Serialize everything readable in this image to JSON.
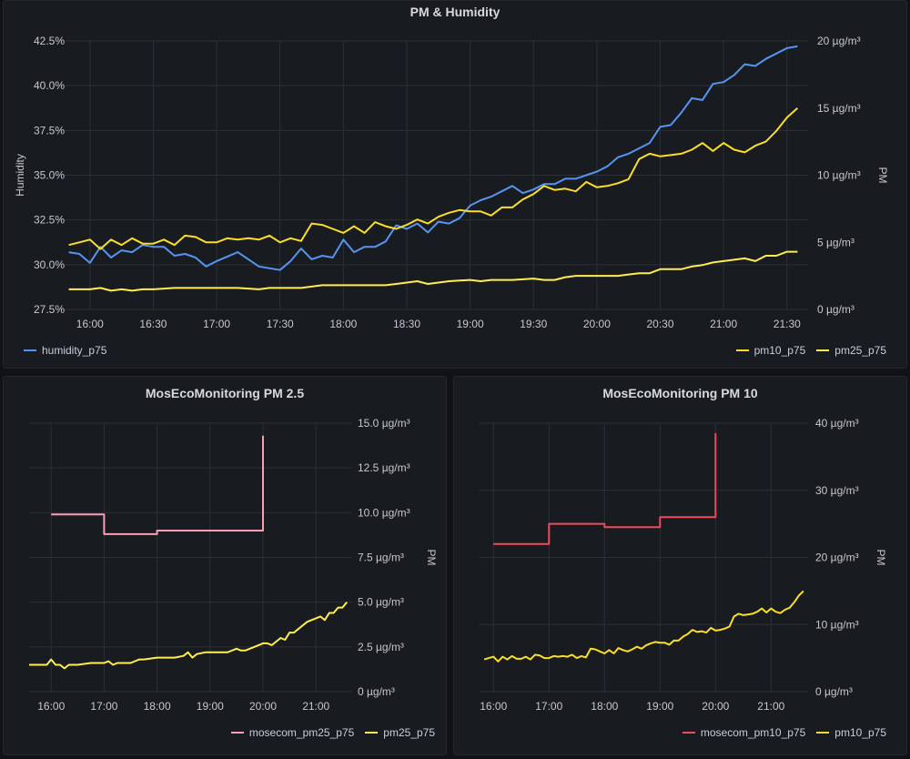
{
  "chart_data": [
    {
      "type": "line",
      "title": "PM & Humidity",
      "x_ticks": [
        "16:00",
        "16:30",
        "17:00",
        "17:30",
        "18:00",
        "18:30",
        "19:00",
        "19:30",
        "20:00",
        "20:30",
        "21:00",
        "21:30"
      ],
      "xlim": [
        "15:45",
        "21:40"
      ],
      "y_left": {
        "label": "Humidity",
        "ylim": [
          27.5,
          42.5
        ],
        "ticks": [
          "27.5%",
          "30.0%",
          "32.5%",
          "35.0%",
          "37.5%",
          "40.0%",
          "42.5%"
        ]
      },
      "y_right": {
        "label": "PM",
        "ylim": [
          0,
          20
        ],
        "ticks": [
          "0 µg/m³",
          "5 µg/m³",
          "10 µg/m³",
          "15 µg/m³",
          "20 µg/m³"
        ]
      },
      "grid": true,
      "legend_left": [
        "humidity_p75"
      ],
      "legend_right": [
        "pm10_p75",
        "pm25_p75"
      ],
      "series": [
        {
          "name": "humidity_p75",
          "axis": "left",
          "color": "#5794f2",
          "x": [
            "15:50",
            "15:55",
            "16:00",
            "16:05",
            "16:10",
            "16:15",
            "16:20",
            "16:25",
            "16:30",
            "16:35",
            "16:40",
            "16:45",
            "16:50",
            "16:55",
            "17:00",
            "17:10",
            "17:20",
            "17:30",
            "17:35",
            "17:40",
            "17:45",
            "17:50",
            "17:55",
            "18:00",
            "18:05",
            "18:10",
            "18:15",
            "18:20",
            "18:25",
            "18:30",
            "18:35",
            "18:40",
            "18:45",
            "18:50",
            "18:55",
            "19:00",
            "19:05",
            "19:10",
            "19:15",
            "19:20",
            "19:25",
            "19:30",
            "19:35",
            "19:40",
            "19:45",
            "19:50",
            "19:55",
            "20:00",
            "20:05",
            "20:10",
            "20:15",
            "20:20",
            "20:25",
            "20:30",
            "20:35",
            "20:40",
            "20:45",
            "20:50",
            "20:55",
            "21:00",
            "21:05",
            "21:10",
            "21:15",
            "21:20",
            "21:25",
            "21:30",
            "21:35"
          ],
          "values": [
            30.7,
            30.6,
            30.1,
            31.0,
            30.4,
            30.8,
            30.7,
            31.1,
            31.0,
            31.0,
            30.5,
            30.6,
            30.4,
            29.9,
            30.2,
            30.7,
            29.9,
            29.7,
            30.2,
            30.9,
            30.3,
            30.5,
            30.4,
            31.4,
            30.7,
            31.0,
            31.0,
            31.3,
            32.2,
            32.0,
            32.3,
            31.8,
            32.4,
            32.3,
            32.6,
            33.3,
            33.6,
            33.8,
            34.1,
            34.4,
            34.0,
            34.2,
            34.5,
            34.5,
            34.8,
            34.8,
            35.0,
            35.2,
            35.5,
            36.0,
            36.2,
            36.5,
            36.8,
            37.7,
            37.8,
            38.5,
            39.3,
            39.2,
            40.1,
            40.2,
            40.6,
            41.2,
            41.1,
            41.5,
            41.8,
            42.1,
            42.2
          ]
        },
        {
          "name": "pm10_p75",
          "axis": "right",
          "color": "#fade2a",
          "x": [
            "15:50",
            "15:55",
            "16:00",
            "16:05",
            "16:10",
            "16:15",
            "16:20",
            "16:25",
            "16:30",
            "16:35",
            "16:40",
            "16:45",
            "16:50",
            "16:55",
            "17:00",
            "17:05",
            "17:10",
            "17:15",
            "17:20",
            "17:25",
            "17:30",
            "17:35",
            "17:40",
            "17:45",
            "17:50",
            "17:55",
            "18:00",
            "18:05",
            "18:10",
            "18:15",
            "18:20",
            "18:25",
            "18:30",
            "18:35",
            "18:40",
            "18:45",
            "18:50",
            "18:55",
            "19:00",
            "19:05",
            "19:10",
            "19:15",
            "19:20",
            "19:25",
            "19:30",
            "19:35",
            "19:40",
            "19:45",
            "19:50",
            "19:55",
            "20:00",
            "20:05",
            "20:10",
            "20:15",
            "20:20",
            "20:25",
            "20:30",
            "20:35",
            "20:40",
            "20:45",
            "20:50",
            "20:55",
            "21:00",
            "21:05",
            "21:10",
            "21:15",
            "21:20",
            "21:25",
            "21:30",
            "21:35"
          ],
          "values": [
            4.8,
            5.0,
            5.2,
            4.5,
            5.2,
            4.8,
            5.3,
            4.9,
            4.9,
            5.2,
            4.8,
            5.5,
            5.4,
            5.0,
            5.0,
            5.3,
            5.2,
            5.3,
            5.2,
            5.5,
            5.0,
            5.3,
            5.1,
            6.4,
            6.3,
            6.0,
            5.7,
            6.2,
            5.7,
            6.5,
            6.2,
            6.0,
            6.3,
            6.7,
            6.4,
            6.9,
            7.2,
            7.4,
            7.3,
            7.3,
            7.0,
            7.6,
            7.6,
            8.2,
            8.6,
            9.2,
            8.9,
            9.0,
            8.8,
            9.5,
            9.1,
            9.2,
            9.4,
            9.7,
            11.2,
            11.6,
            11.4,
            11.5,
            11.6,
            11.9,
            12.4,
            11.8,
            12.4,
            11.9,
            11.7,
            12.2,
            12.5,
            13.3,
            14.3,
            15.0
          ]
        },
        {
          "name": "pm25_p75",
          "axis": "right",
          "color": "#ffee52",
          "x": [
            "15:50",
            "16:00",
            "16:05",
            "16:10",
            "16:15",
            "16:20",
            "16:25",
            "16:30",
            "16:40",
            "16:50",
            "17:00",
            "17:05",
            "17:10",
            "17:20",
            "17:25",
            "17:30",
            "17:40",
            "17:50",
            "17:55",
            "18:00",
            "18:10",
            "18:20",
            "18:25",
            "18:30",
            "18:35",
            "18:40",
            "18:45",
            "18:50",
            "19:00",
            "19:05",
            "19:10",
            "19:20",
            "19:30",
            "19:35",
            "19:40",
            "19:45",
            "19:50",
            "19:55",
            "20:00",
            "20:05",
            "20:10",
            "20:15",
            "20:20",
            "20:25",
            "20:30",
            "20:35",
            "20:40",
            "20:45",
            "20:50",
            "20:55",
            "21:00",
            "21:05",
            "21:10",
            "21:15",
            "21:20",
            "21:25",
            "21:30",
            "21:35"
          ],
          "values": [
            1.5,
            1.5,
            1.6,
            1.4,
            1.5,
            1.4,
            1.5,
            1.5,
            1.6,
            1.6,
            1.6,
            1.6,
            1.6,
            1.5,
            1.6,
            1.6,
            1.6,
            1.8,
            1.8,
            1.8,
            1.8,
            1.8,
            1.9,
            2.0,
            2.1,
            1.9,
            2.0,
            2.1,
            2.2,
            2.1,
            2.2,
            2.2,
            2.3,
            2.2,
            2.2,
            2.4,
            2.5,
            2.5,
            2.5,
            2.5,
            2.5,
            2.6,
            2.7,
            2.7,
            3.0,
            3.0,
            3.0,
            3.2,
            3.3,
            3.5,
            3.6,
            3.7,
            3.8,
            3.6,
            4.0,
            4.0,
            4.3,
            4.3
          ]
        }
      ]
    },
    {
      "type": "line",
      "title": "MosEcoMonitoring PM 2.5",
      "x_ticks": [
        "16:00",
        "17:00",
        "18:00",
        "19:00",
        "20:00",
        "21:00"
      ],
      "xlim": [
        "15:35",
        "21:40"
      ],
      "y_right": {
        "label": "PM",
        "ylim": [
          0,
          15
        ],
        "ticks": [
          "0 µg/m³",
          "2.5 µg/m³",
          "5.0 µg/m³",
          "7.5 µg/m³",
          "10.0 µg/m³",
          "12.5 µg/m³",
          "15.0 µg/m³"
        ]
      },
      "grid": true,
      "legend": [
        "mosecom_pm25_p75",
        "pm25_p75"
      ],
      "series": [
        {
          "name": "mosecom_pm25_p75",
          "color": "#ff9db4",
          "step": true,
          "x": [
            "16:00",
            "17:00",
            "17:00",
            "18:00",
            "18:00",
            "20:00",
            "20:00"
          ],
          "values": [
            9.9,
            9.9,
            8.8,
            8.8,
            9.0,
            9.0,
            14.3
          ]
        },
        {
          "name": "pm25_p75",
          "color": "#ffee52",
          "x": [
            "15:35",
            "15:55",
            "16:00",
            "16:05",
            "16:10",
            "16:15",
            "16:20",
            "16:25",
            "16:30",
            "16:45",
            "17:00",
            "17:05",
            "17:10",
            "17:15",
            "17:30",
            "17:40",
            "17:45",
            "18:00",
            "18:10",
            "18:20",
            "18:30",
            "18:35",
            "18:40",
            "18:45",
            "18:55",
            "19:00",
            "19:10",
            "19:20",
            "19:30",
            "19:35",
            "19:40",
            "19:55",
            "20:00",
            "20:05",
            "20:10",
            "20:15",
            "20:20",
            "20:25",
            "20:30",
            "20:35",
            "20:40",
            "20:45",
            "20:50",
            "20:55",
            "21:00",
            "21:05",
            "21:10",
            "21:15",
            "21:20",
            "21:25",
            "21:30",
            "21:35"
          ],
          "values": [
            1.5,
            1.5,
            1.8,
            1.5,
            1.5,
            1.3,
            1.5,
            1.5,
            1.5,
            1.6,
            1.6,
            1.7,
            1.5,
            1.6,
            1.6,
            1.8,
            1.8,
            1.9,
            1.9,
            1.9,
            2.0,
            2.2,
            1.9,
            2.1,
            2.2,
            2.2,
            2.2,
            2.2,
            2.4,
            2.3,
            2.3,
            2.6,
            2.7,
            2.7,
            2.6,
            2.8,
            3.0,
            2.9,
            3.3,
            3.3,
            3.5,
            3.7,
            3.9,
            4.0,
            4.1,
            4.2,
            4.0,
            4.4,
            4.4,
            4.7,
            4.7,
            5.0
          ]
        }
      ]
    },
    {
      "type": "line",
      "title": "MosEcoMonitoring PM 10",
      "x_ticks": [
        "16:00",
        "17:00",
        "18:00",
        "19:00",
        "20:00",
        "21:00"
      ],
      "xlim": [
        "15:45",
        "21:40"
      ],
      "y_right": {
        "label": "PM",
        "ylim": [
          0,
          40
        ],
        "ticks": [
          "0 µg/m³",
          "10 µg/m³",
          "20 µg/m³",
          "30 µg/m³",
          "40 µg/m³"
        ]
      },
      "grid": true,
      "legend": [
        "mosecom_pm10_p75",
        "pm10_p75"
      ],
      "series": [
        {
          "name": "mosecom_pm10_p75",
          "color": "#f2495c",
          "step": true,
          "x": [
            "16:00",
            "17:00",
            "17:00",
            "18:00",
            "18:00",
            "19:00",
            "19:00",
            "20:00",
            "20:00"
          ],
          "values": [
            22,
            22,
            25,
            25,
            24.5,
            24.5,
            26,
            26,
            38.5
          ]
        },
        {
          "name": "pm10_p75",
          "color": "#fade2a",
          "x": [
            "15:50",
            "15:55",
            "16:00",
            "16:05",
            "16:10",
            "16:15",
            "16:20",
            "16:25",
            "16:30",
            "16:35",
            "16:40",
            "16:45",
            "16:50",
            "16:55",
            "17:00",
            "17:05",
            "17:10",
            "17:15",
            "17:20",
            "17:25",
            "17:30",
            "17:35",
            "17:40",
            "17:45",
            "17:50",
            "17:55",
            "18:00",
            "18:05",
            "18:10",
            "18:15",
            "18:20",
            "18:25",
            "18:30",
            "18:35",
            "18:40",
            "18:45",
            "18:50",
            "18:55",
            "19:00",
            "19:05",
            "19:10",
            "19:15",
            "19:20",
            "19:25",
            "19:30",
            "19:35",
            "19:40",
            "19:45",
            "19:50",
            "19:55",
            "20:00",
            "20:05",
            "20:10",
            "20:15",
            "20:20",
            "20:25",
            "20:30",
            "20:35",
            "20:40",
            "20:45",
            "20:50",
            "20:55",
            "21:00",
            "21:05",
            "21:10",
            "21:15",
            "21:20",
            "21:25",
            "21:30",
            "21:35"
          ],
          "values": [
            4.8,
            5.0,
            5.2,
            4.5,
            5.2,
            4.8,
            5.3,
            4.9,
            4.9,
            5.2,
            4.8,
            5.5,
            5.4,
            5.0,
            5.0,
            5.3,
            5.2,
            5.3,
            5.2,
            5.5,
            5.0,
            5.3,
            5.1,
            6.4,
            6.3,
            6.0,
            5.7,
            6.2,
            5.7,
            6.5,
            6.2,
            6.0,
            6.3,
            6.7,
            6.4,
            6.9,
            7.2,
            7.4,
            7.3,
            7.3,
            7.0,
            7.6,
            7.6,
            8.2,
            8.6,
            9.2,
            8.9,
            9.0,
            8.8,
            9.5,
            9.1,
            9.2,
            9.4,
            9.7,
            11.2,
            11.6,
            11.4,
            11.5,
            11.6,
            11.9,
            12.4,
            11.8,
            12.4,
            11.9,
            11.7,
            12.2,
            12.5,
            13.3,
            14.3,
            15.0
          ]
        }
      ]
    }
  ]
}
